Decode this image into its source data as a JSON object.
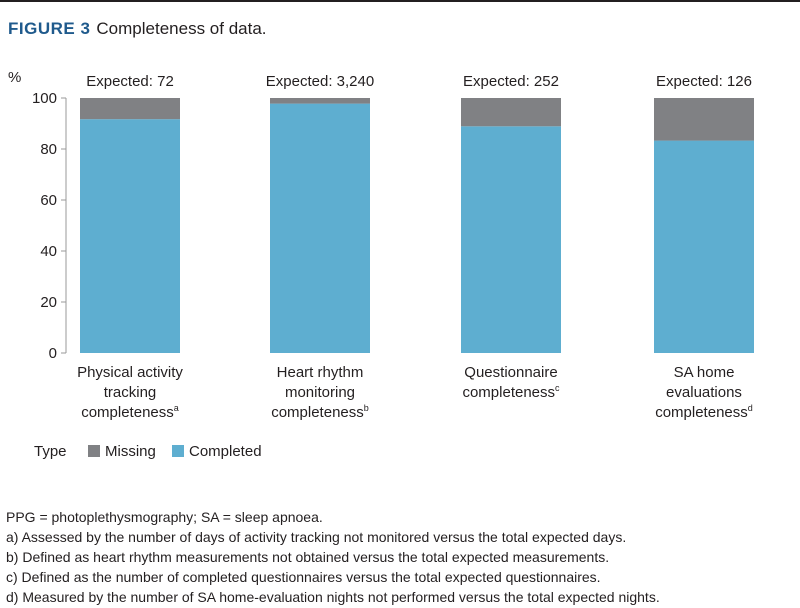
{
  "figure_label": "FIGURE 3",
  "figure_title": "Completeness of data.",
  "chart_data": {
    "type": "bar",
    "stacked": true,
    "ylabel": "%",
    "ylim": [
      0,
      100
    ],
    "yticks": [
      "0",
      "20",
      "40",
      "60",
      "80",
      "100"
    ],
    "categories": [
      [
        "Physical activity",
        "tracking",
        "completeness",
        "a"
      ],
      [
        "Heart rhythm",
        "monitoring",
        "completeness",
        "b"
      ],
      [
        "Questionnaire",
        "completeness",
        "c"
      ],
      [
        "SA home",
        "evaluations",
        "completeness",
        "d"
      ]
    ],
    "expected_labels": [
      "Expected: 72",
      "Expected: 3,240",
      "Expected: 252",
      "Expected: 126"
    ],
    "series": [
      {
        "name": "Completed",
        "color": "#5eaed0",
        "values": [
          91.7,
          97.8,
          88.9,
          83.3
        ]
      },
      {
        "name": "Missing",
        "color": "#808184",
        "values": [
          8.3,
          2.2,
          11.1,
          16.7
        ]
      }
    ],
    "legend": {
      "title": "Type",
      "placement": "bottom-left",
      "items": [
        "Missing",
        "Completed"
      ]
    }
  },
  "notes": [
    "PPG = photoplethysmography; SA = sleep apnoea.",
    "a) Assessed by the number of days of activity tracking not monitored versus the total expected days.",
    "b) Defined as heart rhythm measurements not obtained versus the total expected measurements.",
    "c) Defined as the number of completed questionnaires versus the total expected questionnaires.",
    "d) Measured by the number of SA home-evaluation nights not performed versus the total expected nights."
  ]
}
